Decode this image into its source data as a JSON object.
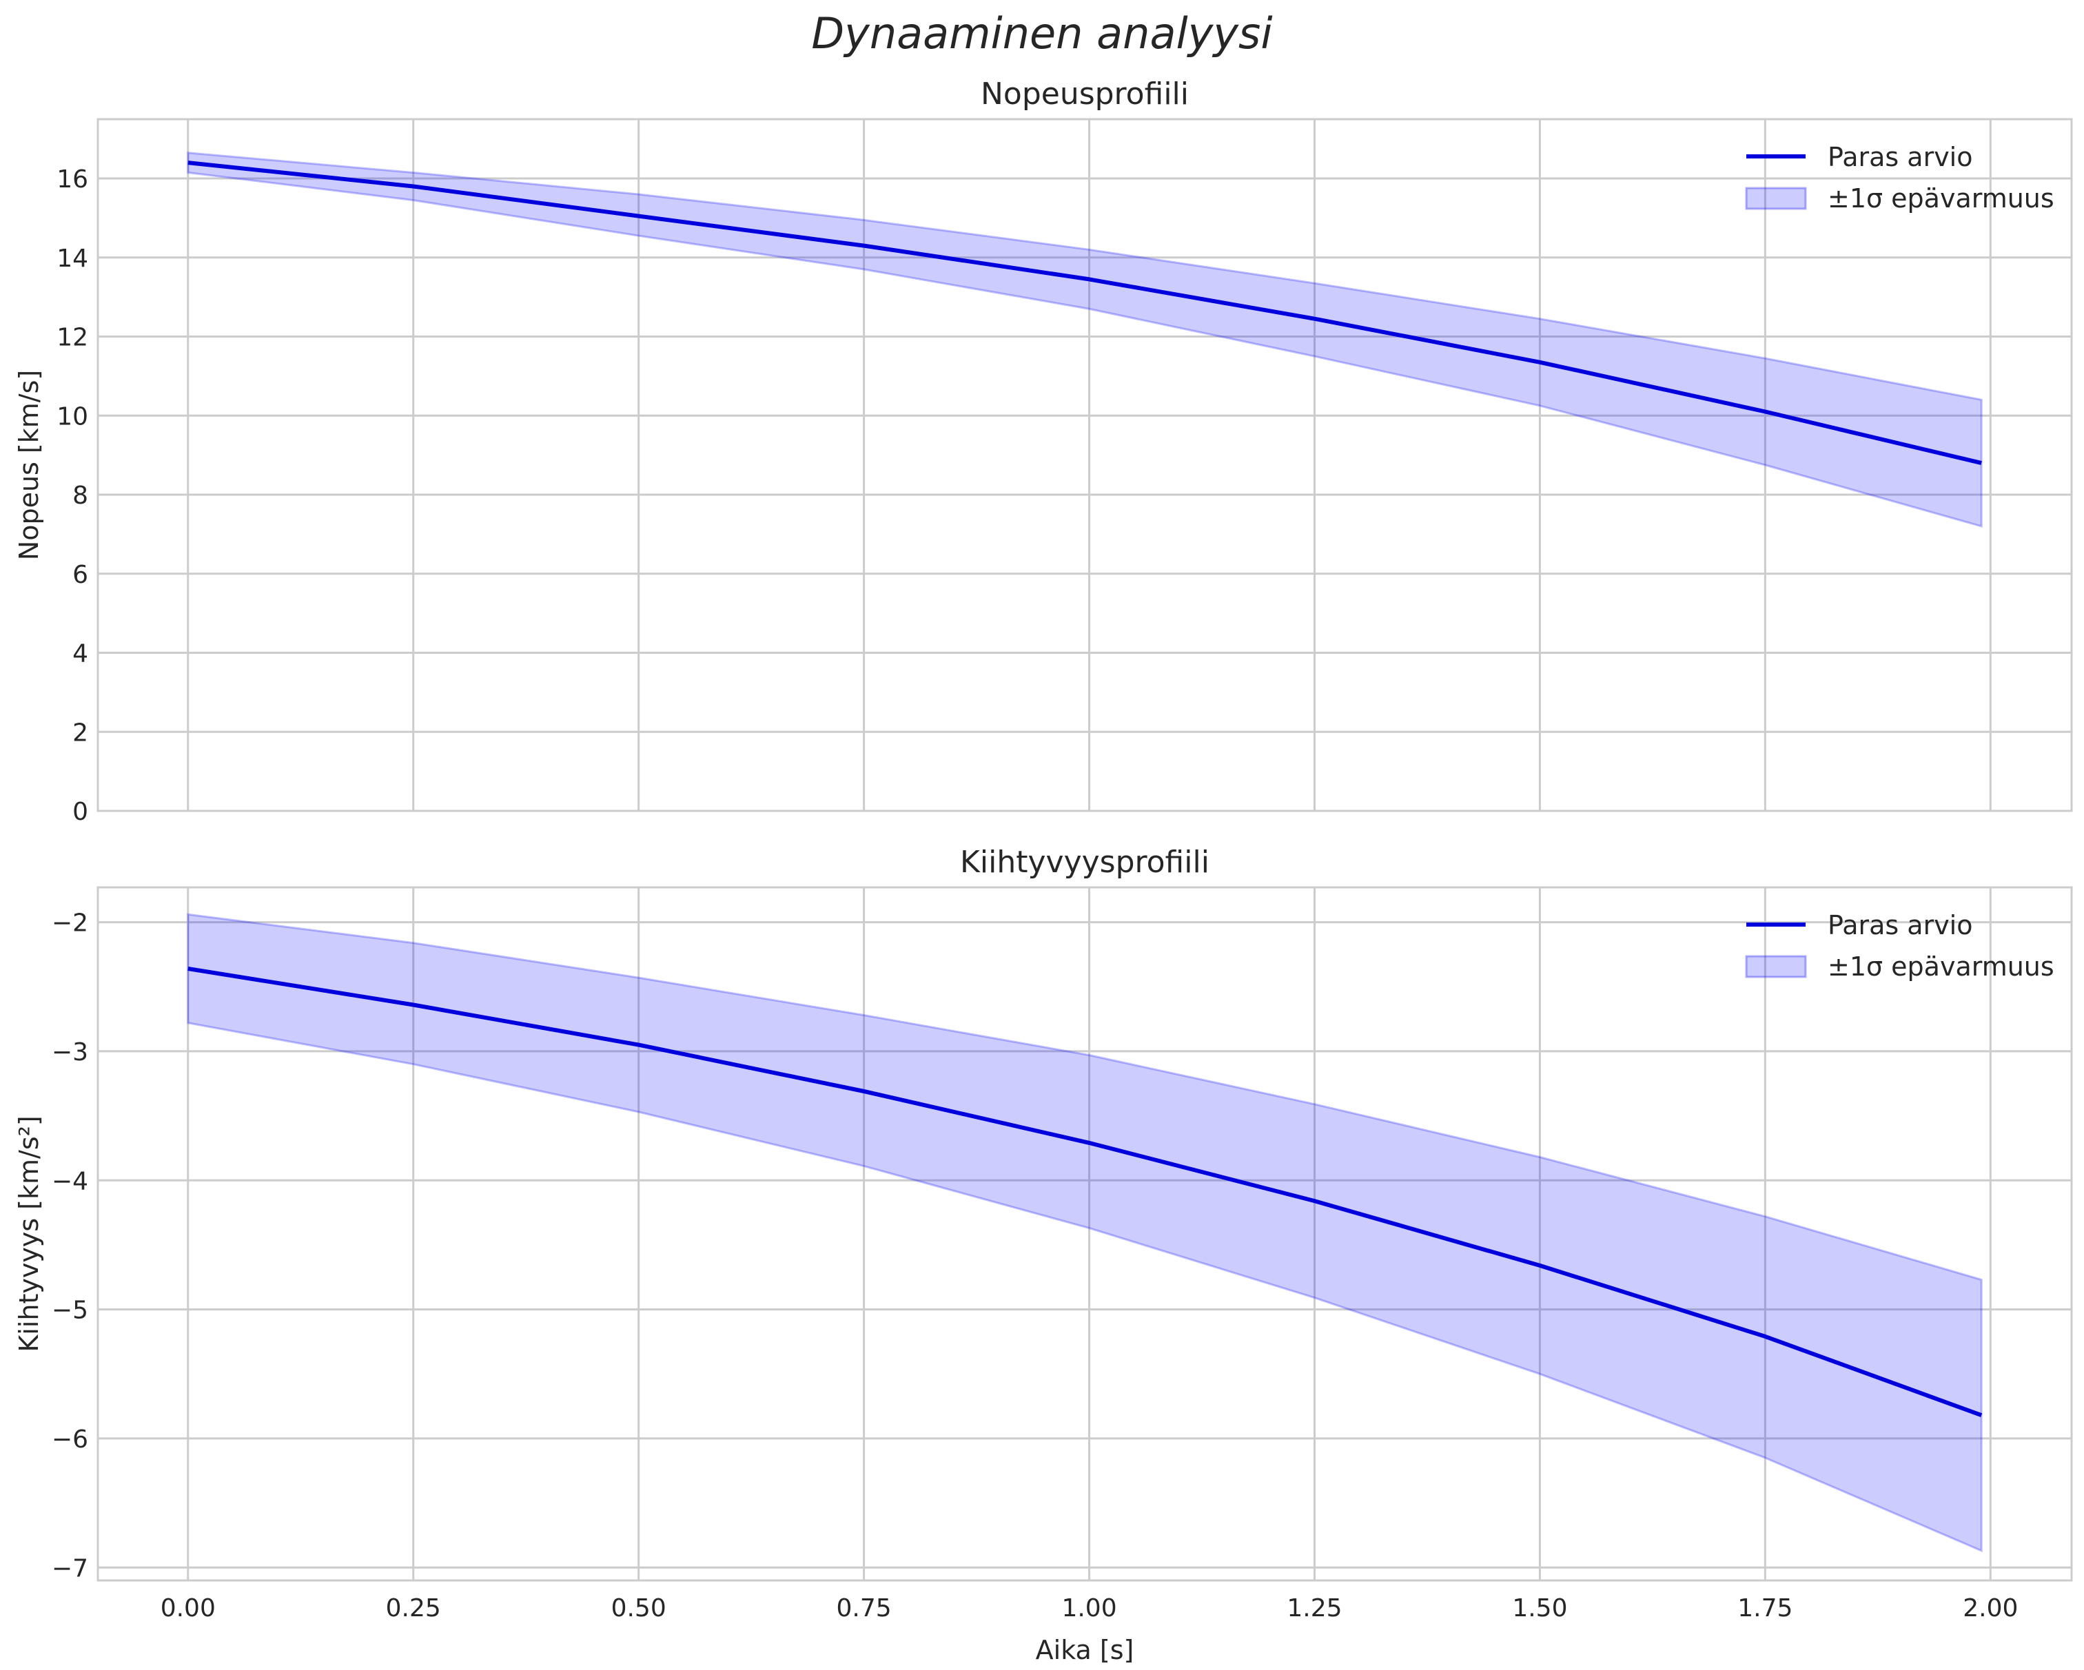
{
  "title": "Dynaaminen analyysi",
  "colors": {
    "line": "#0000dd",
    "band_fill": "#0000ff",
    "grid": "#cccccc",
    "spine": "#cccccc",
    "text": "#262626"
  },
  "chart_data": [
    {
      "type": "line",
      "title": "Nopeusprofiili",
      "xlabel": "",
      "ylabel": "Nopeus [km/s]",
      "xlim": [
        -0.1,
        2.09
      ],
      "ylim": [
        0,
        17.5
      ],
      "xticks": [
        0.0,
        0.25,
        0.5,
        0.75,
        1.0,
        1.25,
        1.5,
        1.75,
        2.0
      ],
      "xtick_labels": [],
      "yticks": [
        0,
        2,
        4,
        6,
        8,
        10,
        12,
        14,
        16
      ],
      "ytick_labels": [
        "0",
        "2",
        "4",
        "6",
        "8",
        "10",
        "12",
        "14",
        "16"
      ],
      "grid": true,
      "legend_position": "top-right",
      "legend": [
        "Paras arvio",
        "±1σ epävarmuus"
      ],
      "x": [
        0.0,
        0.25,
        0.5,
        0.75,
        1.0,
        1.25,
        1.5,
        1.75,
        1.99
      ],
      "series": [
        {
          "name": "Paras arvio",
          "values": [
            16.4,
            15.8,
            15.05,
            14.3,
            13.45,
            12.45,
            11.35,
            10.1,
            8.8
          ]
        },
        {
          "name": "±1σ epävarmuus (yläraja)",
          "values": [
            16.65,
            16.15,
            15.6,
            14.95,
            14.2,
            13.35,
            12.45,
            11.45,
            10.4
          ]
        },
        {
          "name": "±1σ epävarmuus (alaraja)",
          "values": [
            16.15,
            15.45,
            14.55,
            13.7,
            12.7,
            11.5,
            10.25,
            8.75,
            7.2
          ]
        }
      ]
    },
    {
      "type": "line",
      "title": "Kiihtyvyysprofiili",
      "xlabel": "Aika [s]",
      "ylabel": "Kiihtyvyys [km/s²]",
      "xlim": [
        -0.1,
        2.09
      ],
      "ylim": [
        -7.1,
        -1.73
      ],
      "xticks": [
        0.0,
        0.25,
        0.5,
        0.75,
        1.0,
        1.25,
        1.5,
        1.75,
        2.0
      ],
      "xtick_labels": [
        "0.00",
        "0.25",
        "0.50",
        "0.75",
        "1.00",
        "1.25",
        "1.50",
        "1.75",
        "2.00"
      ],
      "yticks": [
        -2,
        -3,
        -4,
        -5,
        -6,
        -7
      ],
      "ytick_labels": [
        "−2",
        "−3",
        "−4",
        "−5",
        "−6",
        "−7"
      ],
      "grid": true,
      "legend_position": "top-right",
      "legend": [
        "Paras arvio",
        "±1σ epävarmuus"
      ],
      "x": [
        0.0,
        0.25,
        0.5,
        0.75,
        1.0,
        1.25,
        1.5,
        1.75,
        1.99
      ],
      "series": [
        {
          "name": "Paras arvio",
          "values": [
            -2.36,
            -2.64,
            -2.95,
            -3.31,
            -3.71,
            -4.16,
            -4.66,
            -5.21,
            -5.82
          ]
        },
        {
          "name": "±1σ epävarmuus (yläraja)",
          "values": [
            -1.94,
            -2.16,
            -2.43,
            -2.72,
            -3.03,
            -3.41,
            -3.82,
            -4.28,
            -4.77
          ]
        },
        {
          "name": "±1σ epävarmuus (alaraja)",
          "values": [
            -2.78,
            -3.1,
            -3.47,
            -3.89,
            -4.37,
            -4.91,
            -5.5,
            -6.15,
            -6.87
          ]
        }
      ]
    }
  ]
}
